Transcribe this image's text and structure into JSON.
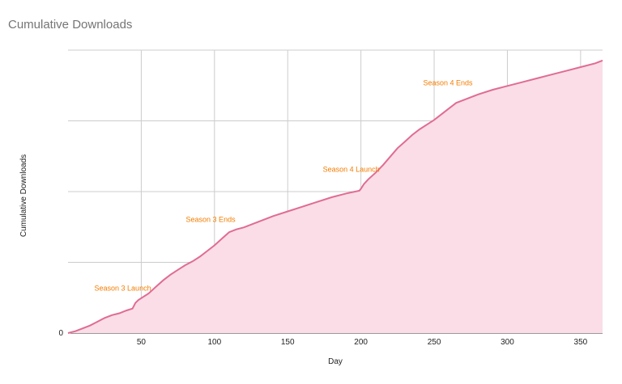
{
  "chart_data": {
    "type": "area",
    "title": "Cumulative Downloads",
    "xlabel": "Day",
    "ylabel": "Cumulative Downloads",
    "xlim": [
      0,
      365
    ],
    "ylim": [
      0,
      300
    ],
    "x_ticks": [
      50,
      100,
      150,
      200,
      250,
      300,
      350
    ],
    "y_ticks": [
      0
    ],
    "grid": true,
    "legend": "none",
    "colors": {
      "line": "#e06c93",
      "fill": "#fadde7",
      "annotation": "#f57c00"
    },
    "series": [
      {
        "x": [
          0,
          5,
          10,
          15,
          20,
          25,
          30,
          35,
          40,
          44,
          46,
          48,
          50,
          55,
          60,
          65,
          70,
          75,
          80,
          85,
          90,
          95,
          100,
          105,
          110,
          115,
          120,
          130,
          140,
          150,
          160,
          170,
          180,
          190,
          199,
          200,
          202,
          205,
          210,
          215,
          220,
          225,
          230,
          235,
          240,
          245,
          250,
          255,
          260,
          265,
          270,
          280,
          290,
          300,
          310,
          320,
          330,
          340,
          350,
          360,
          365
        ],
        "values": [
          0,
          2,
          5,
          8,
          12,
          16,
          19,
          21,
          24,
          26,
          32,
          35,
          37,
          42,
          49,
          56,
          62,
          67,
          72,
          76,
          81,
          87,
          93,
          100,
          107,
          110,
          112,
          118,
          124,
          129,
          134,
          139,
          144,
          148,
          151,
          153,
          158,
          163,
          170,
          178,
          187,
          196,
          203,
          210,
          216,
          221,
          226,
          232,
          238,
          244,
          247,
          253,
          258,
          262,
          266,
          270,
          274,
          278,
          282,
          286,
          289
        ]
      }
    ],
    "annotations": [
      {
        "x": 44,
        "y": 26,
        "label": "Season 3 Launch"
      },
      {
        "x": 104,
        "y": 99,
        "label": "Season 3 Ends"
      },
      {
        "x": 200,
        "y": 152,
        "label": "Season 4 Launch"
      },
      {
        "x": 266,
        "y": 244,
        "label": "Season 4 Ends"
      }
    ]
  }
}
